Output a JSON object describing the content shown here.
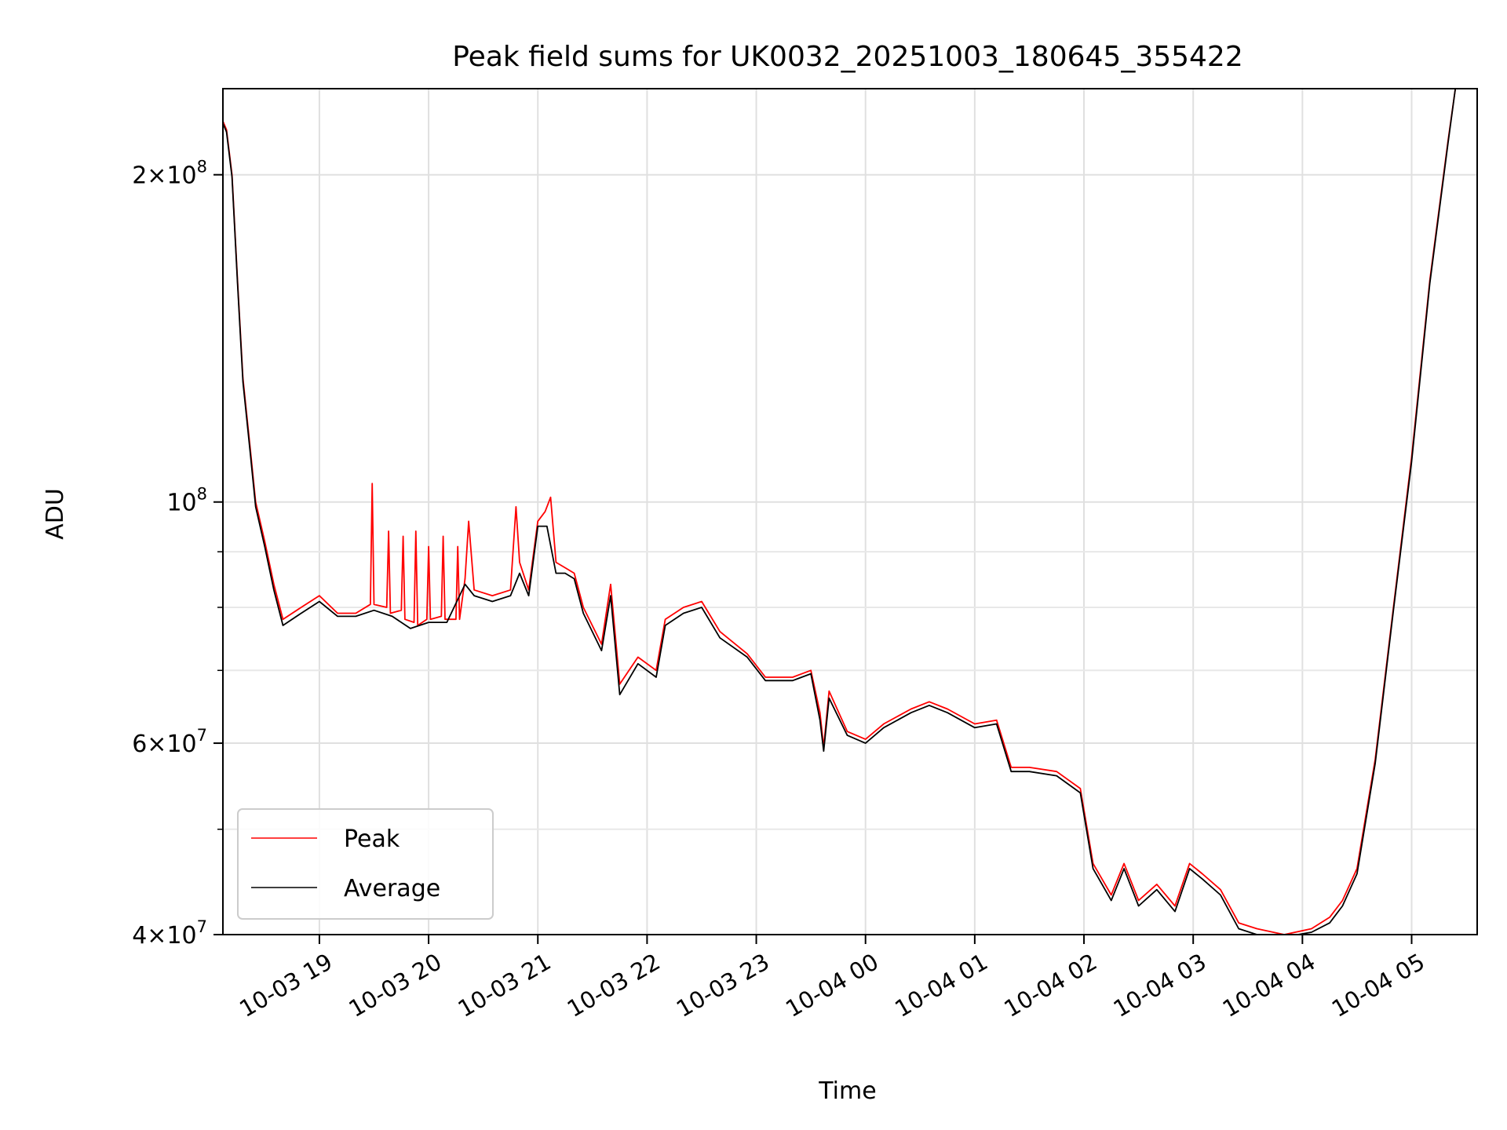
{
  "chart_data": {
    "type": "line",
    "title": "Peak field sums for UK0032_20251003_180645_355422",
    "xlabel": "Time",
    "ylabel": "ADU",
    "yscale": "log",
    "grid": true,
    "legend_placement": "lower-left",
    "xlim": [
      "2025-10-03 18:07",
      "2025-10-04 05:36"
    ],
    "ylim": [
      40000000,
      240000000
    ],
    "x_ticks": [
      {
        "t": "2025-10-03 19:00",
        "label": "10-03 19"
      },
      {
        "t": "2025-10-03 20:00",
        "label": "10-03 20"
      },
      {
        "t": "2025-10-03 21:00",
        "label": "10-03 21"
      },
      {
        "t": "2025-10-03 22:00",
        "label": "10-03 22"
      },
      {
        "t": "2025-10-03 23:00",
        "label": "10-03 23"
      },
      {
        "t": "2025-10-04 00:00",
        "label": "10-04 00"
      },
      {
        "t": "2025-10-04 01:00",
        "label": "10-04 01"
      },
      {
        "t": "2025-10-04 02:00",
        "label": "10-04 02"
      },
      {
        "t": "2025-10-04 03:00",
        "label": "10-04 03"
      },
      {
        "t": "2025-10-04 04:00",
        "label": "10-04 04"
      },
      {
        "t": "2025-10-04 05:00",
        "label": "10-04 05"
      }
    ],
    "y_ticks_major": [
      {
        "v": 40000000,
        "mant": "4",
        "exp": "7"
      },
      {
        "v": 60000000,
        "mant": "6",
        "exp": "7"
      },
      {
        "v": 100000000,
        "mant": "",
        "exp": "8"
      },
      {
        "v": 200000000,
        "mant": "2",
        "exp": "8"
      }
    ],
    "y_ticks_minor": [
      50000000,
      70000000,
      80000000,
      90000000
    ],
    "series": [
      {
        "name": "Peak",
        "color": "#ff0000",
        "points": [
          [
            "2025-10-03 18:07",
            224000000
          ],
          [
            "2025-10-03 18:09",
            220000000
          ],
          [
            "2025-10-03 18:12",
            200000000
          ],
          [
            "2025-10-03 18:15",
            160000000
          ],
          [
            "2025-10-03 18:18",
            130000000
          ],
          [
            "2025-10-03 18:22",
            112000000
          ],
          [
            "2025-10-03 18:25",
            100000000
          ],
          [
            "2025-10-03 18:30",
            92000000
          ],
          [
            "2025-10-03 18:35",
            84000000
          ],
          [
            "2025-10-03 18:40",
            78000000
          ],
          [
            "2025-10-03 18:50",
            80000000
          ],
          [
            "2025-10-03 19:00",
            82000000
          ],
          [
            "2025-10-03 19:10",
            79000000
          ],
          [
            "2025-10-03 19:20",
            79000000
          ],
          [
            "2025-10-03 19:28",
            80500000
          ],
          [
            "2025-10-03 19:29",
            104000000
          ],
          [
            "2025-10-03 19:30",
            80500000
          ],
          [
            "2025-10-03 19:37",
            80000000
          ],
          [
            "2025-10-03 19:38",
            94000000
          ],
          [
            "2025-10-03 19:39",
            79000000
          ],
          [
            "2025-10-03 19:45",
            79500000
          ],
          [
            "2025-10-03 19:46",
            93000000
          ],
          [
            "2025-10-03 19:47",
            78000000
          ],
          [
            "2025-10-03 19:52",
            77500000
          ],
          [
            "2025-10-03 19:53",
            94000000
          ],
          [
            "2025-10-03 19:54",
            77000000
          ],
          [
            "2025-10-03 19:59",
            78000000
          ],
          [
            "2025-10-03 20:00",
            91000000
          ],
          [
            "2025-10-03 20:01",
            78000000
          ],
          [
            "2025-10-03 20:07",
            78500000
          ],
          [
            "2025-10-03 20:08",
            93000000
          ],
          [
            "2025-10-03 20:09",
            78000000
          ],
          [
            "2025-10-03 20:15",
            78000000
          ],
          [
            "2025-10-03 20:16",
            91000000
          ],
          [
            "2025-10-03 20:17",
            78000000
          ],
          [
            "2025-10-03 20:20",
            85000000
          ],
          [
            "2025-10-03 20:22",
            96000000
          ],
          [
            "2025-10-03 20:25",
            83000000
          ],
          [
            "2025-10-03 20:35",
            82000000
          ],
          [
            "2025-10-03 20:45",
            83000000
          ],
          [
            "2025-10-03 20:48",
            99000000
          ],
          [
            "2025-10-03 20:50",
            88000000
          ],
          [
            "2025-10-03 20:55",
            83000000
          ],
          [
            "2025-10-03 21:00",
            96000000
          ],
          [
            "2025-10-03 21:04",
            98000000
          ],
          [
            "2025-10-03 21:07",
            101000000
          ],
          [
            "2025-10-03 21:10",
            88000000
          ],
          [
            "2025-10-03 21:15",
            87000000
          ],
          [
            "2025-10-03 21:20",
            86000000
          ],
          [
            "2025-10-03 21:25",
            80000000
          ],
          [
            "2025-10-03 21:35",
            74000000
          ],
          [
            "2025-10-03 21:40",
            84000000
          ],
          [
            "2025-10-03 21:45",
            68000000
          ],
          [
            "2025-10-03 21:55",
            72000000
          ],
          [
            "2025-10-03 22:05",
            70000000
          ],
          [
            "2025-10-03 22:10",
            78000000
          ],
          [
            "2025-10-03 22:20",
            80000000
          ],
          [
            "2025-10-03 22:30",
            81000000
          ],
          [
            "2025-10-03 22:40",
            76000000
          ],
          [
            "2025-10-03 22:55",
            72500000
          ],
          [
            "2025-10-03 23:05",
            69000000
          ],
          [
            "2025-10-03 23:20",
            69000000
          ],
          [
            "2025-10-03 23:30",
            70000000
          ],
          [
            "2025-10-03 23:35",
            64000000
          ],
          [
            "2025-10-03 23:37",
            59500000
          ],
          [
            "2025-10-03 23:40",
            67000000
          ],
          [
            "2025-10-03 23:50",
            61500000
          ],
          [
            "2025-10-04 00:00",
            60500000
          ],
          [
            "2025-10-04 00:10",
            62500000
          ],
          [
            "2025-10-04 00:25",
            64500000
          ],
          [
            "2025-10-04 00:35",
            65500000
          ],
          [
            "2025-10-04 00:45",
            64500000
          ],
          [
            "2025-10-04 01:00",
            62500000
          ],
          [
            "2025-10-04 01:12",
            63000000
          ],
          [
            "2025-10-04 01:20",
            57000000
          ],
          [
            "2025-10-04 01:30",
            57000000
          ],
          [
            "2025-10-04 01:45",
            56500000
          ],
          [
            "2025-10-04 01:58",
            54500000
          ],
          [
            "2025-10-04 02:05",
            46500000
          ],
          [
            "2025-10-04 02:15",
            43500000
          ],
          [
            "2025-10-04 02:22",
            46500000
          ],
          [
            "2025-10-04 02:30",
            43000000
          ],
          [
            "2025-10-04 02:40",
            44500000
          ],
          [
            "2025-10-04 02:50",
            42500000
          ],
          [
            "2025-10-04 02:58",
            46500000
          ],
          [
            "2025-10-04 03:05",
            45500000
          ],
          [
            "2025-10-04 03:15",
            44000000
          ],
          [
            "2025-10-04 03:25",
            41000000
          ],
          [
            "2025-10-04 03:35",
            40500000
          ],
          [
            "2025-10-04 03:50",
            40000000
          ],
          [
            "2025-10-04 04:05",
            40500000
          ],
          [
            "2025-10-04 04:15",
            41500000
          ],
          [
            "2025-10-04 04:22",
            43000000
          ],
          [
            "2025-10-04 04:30",
            46000000
          ],
          [
            "2025-10-04 04:40",
            58000000
          ],
          [
            "2025-10-04 04:50",
            80000000
          ],
          [
            "2025-10-04 05:00",
            110000000
          ],
          [
            "2025-10-04 05:10",
            160000000
          ],
          [
            "2025-10-04 05:20",
            215000000
          ],
          [
            "2025-10-04 05:24",
            240000000
          ]
        ]
      },
      {
        "name": "Average",
        "color": "#000000",
        "points": [
          [
            "2025-10-03 18:07",
            223000000
          ],
          [
            "2025-10-03 18:09",
            219000000
          ],
          [
            "2025-10-03 18:12",
            199000000
          ],
          [
            "2025-10-03 18:15",
            159000000
          ],
          [
            "2025-10-03 18:18",
            129000000
          ],
          [
            "2025-10-03 18:22",
            111000000
          ],
          [
            "2025-10-03 18:25",
            99000000
          ],
          [
            "2025-10-03 18:30",
            91000000
          ],
          [
            "2025-10-03 18:35",
            83000000
          ],
          [
            "2025-10-03 18:40",
            77000000
          ],
          [
            "2025-10-03 18:50",
            79000000
          ],
          [
            "2025-10-03 19:00",
            81000000
          ],
          [
            "2025-10-03 19:10",
            78500000
          ],
          [
            "2025-10-03 19:20",
            78500000
          ],
          [
            "2025-10-03 19:30",
            79500000
          ],
          [
            "2025-10-03 19:40",
            78500000
          ],
          [
            "2025-10-03 19:50",
            76500000
          ],
          [
            "2025-10-03 20:00",
            77500000
          ],
          [
            "2025-10-03 20:10",
            77500000
          ],
          [
            "2025-10-03 20:20",
            84000000
          ],
          [
            "2025-10-03 20:25",
            82000000
          ],
          [
            "2025-10-03 20:35",
            81000000
          ],
          [
            "2025-10-03 20:45",
            82000000
          ],
          [
            "2025-10-03 20:50",
            86000000
          ],
          [
            "2025-10-03 20:55",
            82000000
          ],
          [
            "2025-10-03 21:00",
            95000000
          ],
          [
            "2025-10-03 21:05",
            95000000
          ],
          [
            "2025-10-03 21:10",
            86000000
          ],
          [
            "2025-10-03 21:15",
            86000000
          ],
          [
            "2025-10-03 21:20",
            85000000
          ],
          [
            "2025-10-03 21:25",
            79000000
          ],
          [
            "2025-10-03 21:35",
            73000000
          ],
          [
            "2025-10-03 21:40",
            82000000
          ],
          [
            "2025-10-03 21:45",
            66500000
          ],
          [
            "2025-10-03 21:55",
            71000000
          ],
          [
            "2025-10-03 22:05",
            69000000
          ],
          [
            "2025-10-03 22:10",
            77000000
          ],
          [
            "2025-10-03 22:20",
            79000000
          ],
          [
            "2025-10-03 22:30",
            80000000
          ],
          [
            "2025-10-03 22:40",
            75000000
          ],
          [
            "2025-10-03 22:55",
            72000000
          ],
          [
            "2025-10-03 23:05",
            68500000
          ],
          [
            "2025-10-03 23:20",
            68500000
          ],
          [
            "2025-10-03 23:30",
            69500000
          ],
          [
            "2025-10-03 23:35",
            63000000
          ],
          [
            "2025-10-03 23:37",
            59000000
          ],
          [
            "2025-10-03 23:40",
            66000000
          ],
          [
            "2025-10-03 23:50",
            61000000
          ],
          [
            "2025-10-04 00:00",
            60000000
          ],
          [
            "2025-10-04 00:10",
            62000000
          ],
          [
            "2025-10-04 00:25",
            64000000
          ],
          [
            "2025-10-04 00:35",
            65000000
          ],
          [
            "2025-10-04 00:45",
            64000000
          ],
          [
            "2025-10-04 01:00",
            62000000
          ],
          [
            "2025-10-04 01:12",
            62500000
          ],
          [
            "2025-10-04 01:20",
            56500000
          ],
          [
            "2025-10-04 01:30",
            56500000
          ],
          [
            "2025-10-04 01:45",
            56000000
          ],
          [
            "2025-10-04 01:58",
            54000000
          ],
          [
            "2025-10-04 02:05",
            46000000
          ],
          [
            "2025-10-04 02:15",
            43000000
          ],
          [
            "2025-10-04 02:22",
            46000000
          ],
          [
            "2025-10-04 02:30",
            42500000
          ],
          [
            "2025-10-04 02:40",
            44000000
          ],
          [
            "2025-10-04 02:50",
            42000000
          ],
          [
            "2025-10-04 02:58",
            46000000
          ],
          [
            "2025-10-04 03:05",
            45000000
          ],
          [
            "2025-10-04 03:15",
            43500000
          ],
          [
            "2025-10-04 03:25",
            40500000
          ],
          [
            "2025-10-04 03:35",
            40000000
          ],
          [
            "2025-10-04 03:50",
            39800000
          ],
          [
            "2025-10-04 04:05",
            40200000
          ],
          [
            "2025-10-04 04:15",
            41000000
          ],
          [
            "2025-10-04 04:22",
            42500000
          ],
          [
            "2025-10-04 04:30",
            45500000
          ],
          [
            "2025-10-04 04:40",
            57500000
          ],
          [
            "2025-10-04 04:50",
            79500000
          ],
          [
            "2025-10-04 05:00",
            109000000
          ],
          [
            "2025-10-04 05:10",
            159000000
          ],
          [
            "2025-10-04 05:20",
            214000000
          ],
          [
            "2025-10-04 05:24",
            240000000
          ]
        ]
      }
    ]
  }
}
